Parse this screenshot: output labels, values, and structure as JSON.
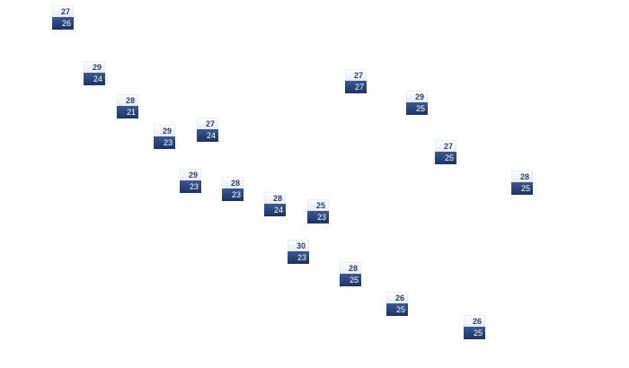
{
  "markers": [
    {
      "high": "27",
      "low": "26"
    },
    {
      "high": "29",
      "low": "24"
    },
    {
      "high": "28",
      "low": "21"
    },
    {
      "high": "29",
      "low": "23"
    },
    {
      "high": "27",
      "low": "24"
    },
    {
      "high": "29",
      "low": "23"
    },
    {
      "high": "28",
      "low": "23"
    },
    {
      "high": "28",
      "low": "24"
    },
    {
      "high": "25",
      "low": "23"
    },
    {
      "high": "30",
      "low": "23"
    },
    {
      "high": "28",
      "low": "25"
    },
    {
      "high": "27",
      "low": "27"
    },
    {
      "high": "29",
      "low": "25"
    },
    {
      "high": "27",
      "low": "25"
    },
    {
      "high": "28",
      "low": "25"
    },
    {
      "high": "26",
      "low": "25"
    },
    {
      "high": "26",
      "low": "25"
    }
  ],
  "colors": {
    "high_text": "#2b3f6e",
    "low_bg": "#1c3263",
    "low_text": "#ffffff"
  }
}
